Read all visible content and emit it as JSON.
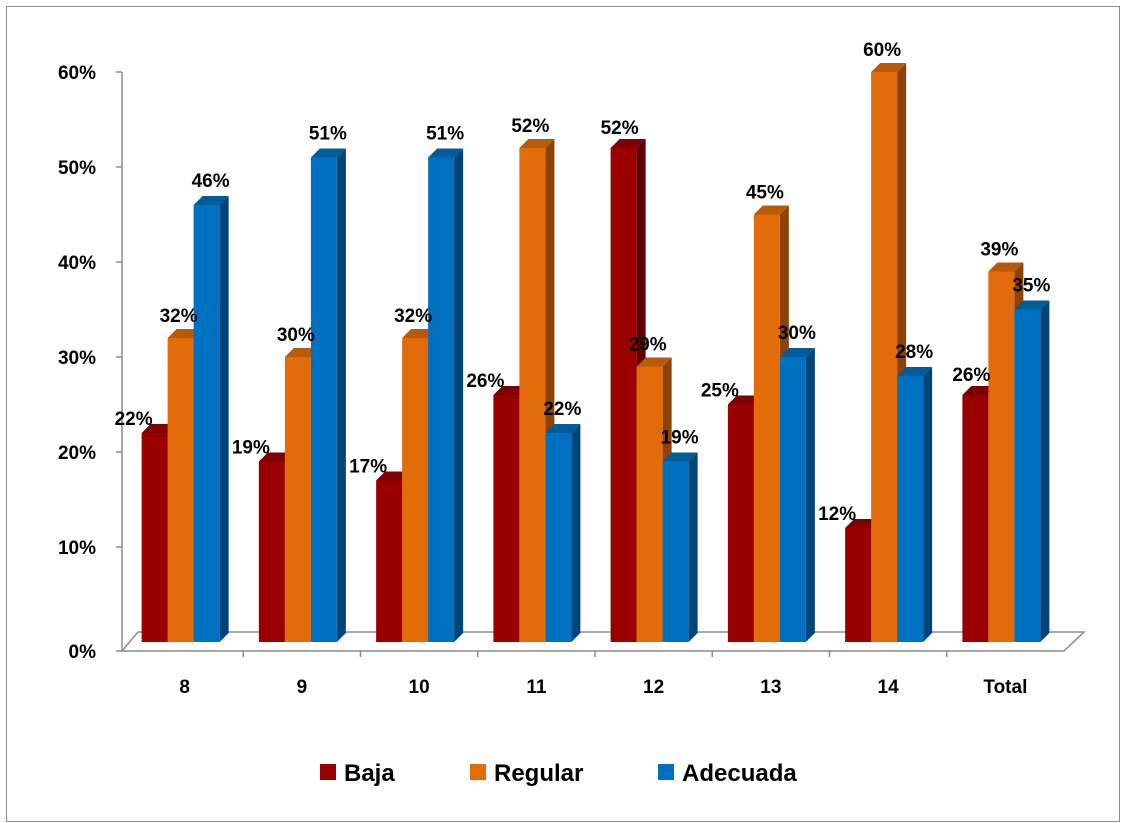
{
  "chart_data": {
    "type": "bar",
    "categories": [
      "8",
      "9",
      "10",
      "11",
      "12",
      "13",
      "14",
      "Total"
    ],
    "series": [
      {
        "name": "Baja",
        "color": "#9b0000",
        "values": [
          22,
          19,
          17,
          26,
          52,
          25,
          12,
          26
        ],
        "labels": [
          "22%",
          "19%",
          "17%",
          "26%",
          "52%",
          "25%",
          "12%",
          "26%"
        ]
      },
      {
        "name": "Regular",
        "color": "#e36c0a",
        "values": [
          32,
          30,
          32,
          52,
          29,
          45,
          60,
          39
        ],
        "labels": [
          "32%",
          "30%",
          "32%",
          "52%",
          "29%",
          "45%",
          "60%",
          "39%"
        ]
      },
      {
        "name": "Adecuada",
        "color": "#0070c0",
        "values": [
          46,
          51,
          51,
          22,
          19,
          30,
          28,
          35
        ],
        "labels": [
          "46%",
          "51%",
          "51%",
          "22%",
          "19%",
          "30%",
          "28%",
          "35%"
        ]
      }
    ],
    "ylim": [
      0,
      60
    ],
    "yticks": [
      "0%",
      "10%",
      "20%",
      "30%",
      "40%",
      "50%",
      "60%"
    ],
    "grid": false,
    "legend": "bottom",
    "style": "3d-clustered-columns"
  }
}
